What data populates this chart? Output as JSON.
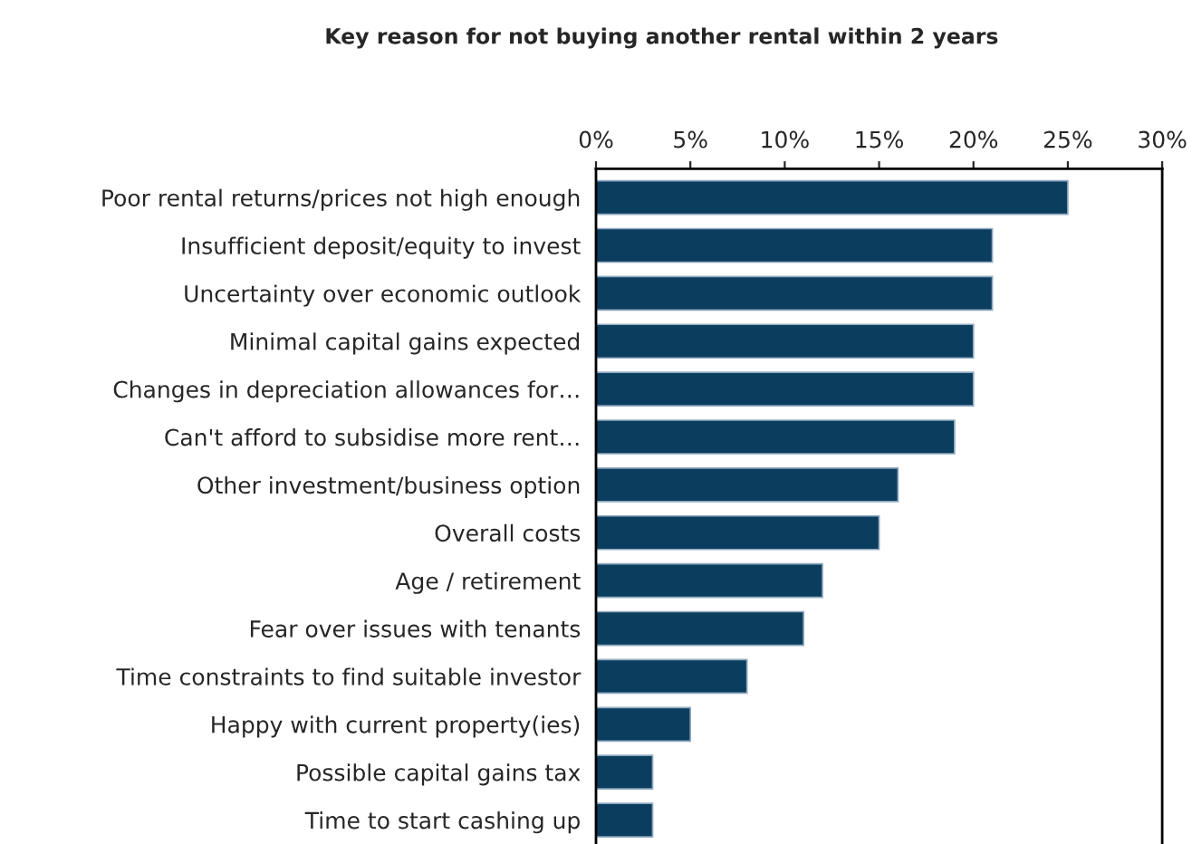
{
  "chart_data": {
    "type": "bar",
    "orientation": "horizontal",
    "title": "Key reason for not buying another rental within 2 years",
    "categories": [
      "Poor rental returns/prices not high enough",
      "Insufficient deposit/equity to invest",
      "Uncertainty over economic outlook",
      "Minimal capital gains expected",
      "Changes in depreciation allowances for…",
      "Can't afford to subsidise more rent…",
      "Other investment/business option",
      "Overall costs",
      "Age / retirement",
      "Fear over issues with tenants",
      "Time constraints to find suitable investor",
      "Happy with current property(ies)",
      "Possible capital gains tax",
      "Time to start cashing up"
    ],
    "values": [
      25,
      21,
      21,
      20,
      20,
      19,
      16,
      15,
      12,
      11,
      8,
      5,
      3,
      3
    ],
    "color": "#0b3d5e",
    "xlim": [
      0,
      30
    ],
    "xticks": [
      {
        "value": 0,
        "label": "0%"
      },
      {
        "value": 5,
        "label": "5%"
      },
      {
        "value": 10,
        "label": "10%"
      },
      {
        "value": 15,
        "label": "15%"
      },
      {
        "value": 20,
        "label": "20%"
      },
      {
        "value": 25,
        "label": "25%"
      },
      {
        "value": 30,
        "label": "30%"
      }
    ],
    "grid": false,
    "legend": false
  }
}
